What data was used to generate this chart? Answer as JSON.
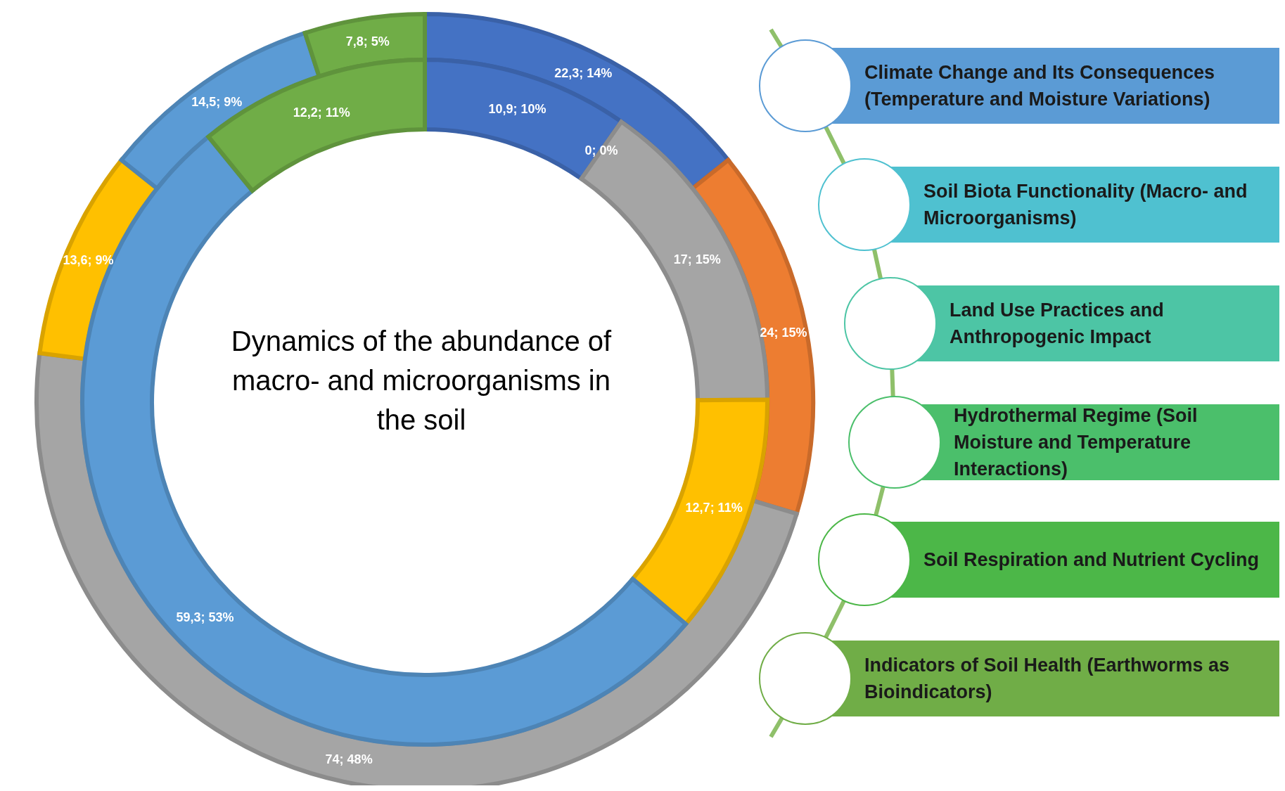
{
  "chart_data": {
    "type": "donut",
    "title": "Dynamics of the abundance of macro- and microorganisms in the soil",
    "categories": [
      null,
      null,
      null,
      null,
      null,
      null
    ],
    "colors": [
      "#4472c4",
      "#ed7d31",
      "#a5a5a5",
      "#ffc000",
      "#5b9bd5",
      "#70ad47"
    ],
    "series": [
      {
        "values": [
          22.3,
          24,
          74,
          13.6,
          14.5,
          7.8
        ],
        "value_labels": [
          "22,3; 14%",
          "24; 15%",
          "74; 48%",
          "13,6; 9%",
          "14,5; 9%",
          "7,8; 5%"
        ]
      },
      {
        "values": [
          10.9,
          0,
          17,
          12.7,
          59.3,
          12.2
        ],
        "value_labels": [
          "10,9; 10%",
          "0; 0%",
          "17; 15%",
          "12,7; 11%",
          "59,3; 53%",
          "12,2; 11%"
        ]
      }
    ],
    "annotations": [
      "Climate Change and Its Consequences (Temperature and Moisture Variations)",
      "Soil Biota Functionality (Macro- and Microorganisms)",
      "Land Use Practices and Anthropogenic Impact",
      "Hydrothermal Regime (Soil Moisture and Temperature Interactions)",
      "Soil Respiration and Nutrient Cycling",
      "Indicators of Soil Health (Earthworms as Bioindicators)"
    ]
  }
}
